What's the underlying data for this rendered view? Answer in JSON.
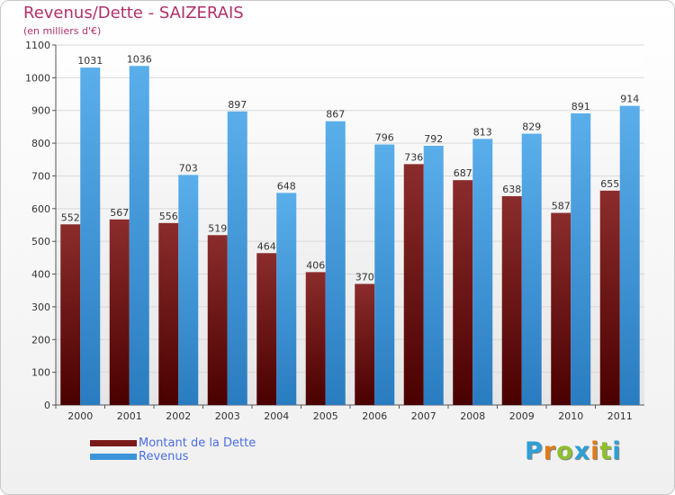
{
  "title": "Revenus/Dette - SAIZERAIS",
  "subtitle": "(en milliers d'€)",
  "chart_data": {
    "type": "bar",
    "categories": [
      "2000",
      "2001",
      "2002",
      "2003",
      "2004",
      "2005",
      "2006",
      "2007",
      "2008",
      "2009",
      "2010",
      "2011"
    ],
    "series": [
      {
        "name": "Montant de la Dette",
        "color": "#7a1a1a",
        "values": [
          552,
          567,
          556,
          519,
          464,
          406,
          370,
          736,
          687,
          638,
          587,
          655
        ],
        "labels": [
          "552",
          "567",
          "556",
          "519",
          "464",
          "406",
          "370",
          "736",
          "687",
          "638",
          "587",
          "655"
        ]
      },
      {
        "name": "Revenus",
        "color": "#3c94d8",
        "values": [
          1031,
          1036,
          703,
          897,
          648,
          867,
          796,
          792,
          813,
          829,
          891,
          914
        ],
        "labels": [
          "1031",
          "1036",
          "703",
          "897",
          "648",
          "867",
          "796",
          "792",
          "813",
          "829",
          "891",
          "914"
        ]
      }
    ],
    "ylim": [
      0,
      1100
    ],
    "yticks": [
      0,
      100,
      200,
      300,
      400,
      500,
      600,
      700,
      800,
      900,
      1000,
      1100
    ],
    "ytick_labels": [
      "0",
      "100",
      "200",
      "300",
      "400",
      "500",
      "600",
      "700",
      "800",
      "900",
      "1000",
      "1100"
    ],
    "grid": true,
    "legend_position": "bottom-left"
  },
  "legend": {
    "items": [
      {
        "label": "Montant de la Dette",
        "color": "#7a1a1a"
      },
      {
        "label": "Revenus",
        "color": "#3c94d8"
      }
    ]
  },
  "logo": {
    "letters": [
      "P",
      "r",
      "o",
      "x",
      "i",
      "t",
      "i"
    ],
    "colors": [
      "#2f9fd8",
      "#e07b1a",
      "#8fbf2f",
      "#2f9fd8",
      "#e07b1a",
      "#8fbf2f",
      "#2f9fd8"
    ]
  }
}
